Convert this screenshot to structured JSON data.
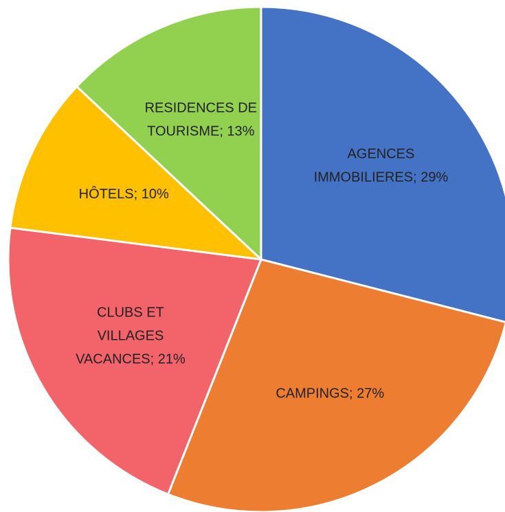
{
  "chart_data": {
    "type": "pie",
    "values": [
      29,
      27,
      21,
      10,
      13
    ],
    "value_labels": [
      "AGENCES\nIMMOBILIERES; 29%",
      "CAMPINGS; 27%",
      "CLUBS ET\nVILLAGES\nVACANCES; 21%",
      "HÔTELS; 10%",
      "RESIDENCES DE\nTOURISME; 13%"
    ],
    "colors": [
      "#4472c4",
      "#ed7d31",
      "#f2636a",
      "#ffc000",
      "#92d050"
    ]
  }
}
